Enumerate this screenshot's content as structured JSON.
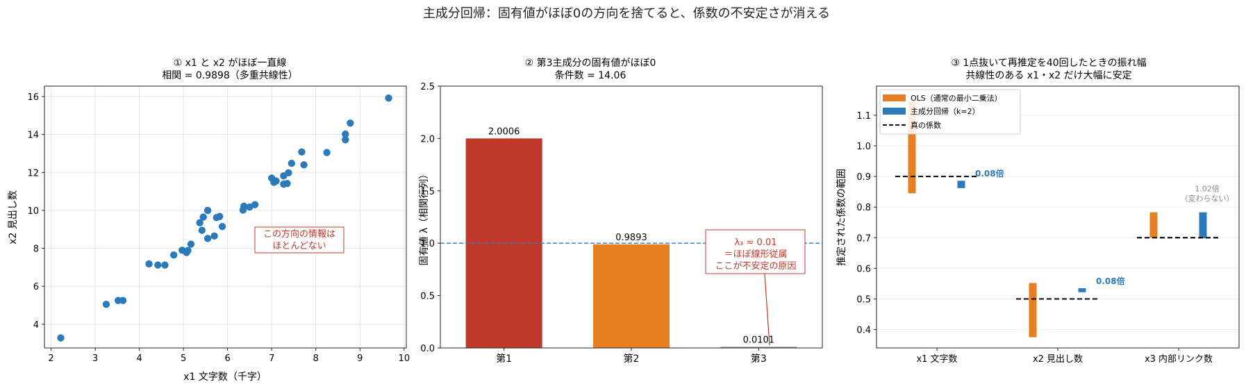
{
  "suptitle": "主成分回帰：固有値がほぼ0の方向を捨てると、係数の不安定さが消える",
  "chart_data": [
    {
      "type": "scatter",
      "title": "① x1 と x2 がほぼ一直線",
      "subtitle": "相関 = 0.9898（多重共線性）",
      "xlabel": "x1 文字数（千字）",
      "ylabel": "x2 見出し数",
      "xlim": [
        1.85,
        10.05
      ],
      "ylim": [
        2.75,
        16.55
      ],
      "xticks": [
        2,
        3,
        4,
        5,
        6,
        7,
        8,
        9,
        10
      ],
      "yticks": [
        4,
        6,
        8,
        10,
        12,
        14,
        16
      ],
      "grid": true,
      "color": "#2b7bba",
      "points": [
        [
          2.22,
          3.28
        ],
        [
          3.25,
          5.05
        ],
        [
          3.52,
          5.25
        ],
        [
          3.63,
          5.25
        ],
        [
          4.22,
          7.18
        ],
        [
          4.42,
          7.12
        ],
        [
          4.58,
          7.12
        ],
        [
          4.78,
          7.65
        ],
        [
          4.97,
          7.9
        ],
        [
          5.07,
          7.78
        ],
        [
          5.1,
          7.88
        ],
        [
          5.17,
          8.22
        ],
        [
          5.37,
          9.35
        ],
        [
          5.45,
          9.65
        ],
        [
          5.42,
          8.95
        ],
        [
          5.55,
          10.0
        ],
        [
          5.55,
          8.52
        ],
        [
          5.7,
          8.65
        ],
        [
          5.75,
          9.62
        ],
        [
          5.82,
          9.68
        ],
        [
          5.88,
          9.15
        ],
        [
          6.35,
          10.02
        ],
        [
          6.37,
          10.22
        ],
        [
          6.5,
          10.18
        ],
        [
          6.62,
          10.3
        ],
        [
          7.0,
          11.7
        ],
        [
          7.05,
          11.48
        ],
        [
          7.1,
          11.55
        ],
        [
          7.27,
          11.82
        ],
        [
          7.27,
          11.38
        ],
        [
          7.35,
          11.42
        ],
        [
          7.38,
          11.98
        ],
        [
          7.45,
          12.48
        ],
        [
          7.68,
          13.08
        ],
        [
          7.73,
          12.4
        ],
        [
          8.25,
          13.05
        ],
        [
          8.67,
          14.02
        ],
        [
          8.67,
          13.72
        ],
        [
          8.78,
          14.6
        ],
        [
          9.65,
          15.92
        ]
      ],
      "annotation": [
        "この方向の情報は",
        "ほとんどない"
      ]
    },
    {
      "type": "bar",
      "title": "② 第3主成分の固有値がほぼ0",
      "subtitle": "条件数 = 14.06",
      "ylabel": "固有値 λ（相関行列）",
      "ylim": [
        0,
        2.5
      ],
      "yticks": [
        "0.0",
        "0.5",
        "1.0",
        "1.5",
        "2.0",
        "2.5"
      ],
      "categories": [
        "第1",
        "第2",
        "第3"
      ],
      "values": [
        2.0006,
        0.9893,
        0.0101
      ],
      "value_labels": [
        "2.0006",
        "0.9893",
        "0.0101"
      ],
      "colors": [
        "#c0392b",
        "#e67e22",
        "#7f8c8d"
      ],
      "reference_line": 1.0,
      "annotation": [
        "λ₃ ≈ 0.01",
        "＝ほぼ線形従属",
        "ここが不安定の原因"
      ]
    },
    {
      "type": "bar",
      "title": "③ 1点抜いて再推定を40回したときの振れ幅",
      "subtitle": "共線性のある x1・x2 だけ大幅に安定",
      "ylabel": "推定された係数の範囲",
      "ylim": [
        0.34,
        1.195
      ],
      "yticks": [
        "0.4",
        "0.5",
        "0.6",
        "0.7",
        "0.8",
        "0.9",
        "1.0",
        "1.1"
      ],
      "categories": [
        "x1 文字数",
        "x2 見出し数",
        "x3 内部リンク数"
      ],
      "legend": [
        "OLS（通常の最小二乗法）",
        "主成分回帰（k=2）",
        "真の係数"
      ],
      "legend_position": "upper-left",
      "series": [
        {
          "name": "OLS（通常の最小二乗法）",
          "color": "#e67e22",
          "ranges": [
            [
              0.845,
              1.145
            ],
            [
              0.375,
              0.552
            ],
            [
              0.7,
              0.783
            ]
          ]
        },
        {
          "name": "主成分回帰（k=2）",
          "color": "#2b7bba",
          "ranges": [
            [
              0.862,
              0.886
            ],
            [
              0.522,
              0.535
            ],
            [
              0.698,
              0.783
            ]
          ]
        }
      ],
      "true_coefficients": [
        0.9,
        0.5,
        0.7
      ],
      "ratio_labels": [
        [
          "0.08倍"
        ],
        [
          "0.08倍"
        ],
        [
          "1.02倍",
          "（変わらない）"
        ]
      ],
      "ratio_colors": [
        "#2b7bba",
        "#2b7bba",
        "#888888"
      ]
    }
  ]
}
